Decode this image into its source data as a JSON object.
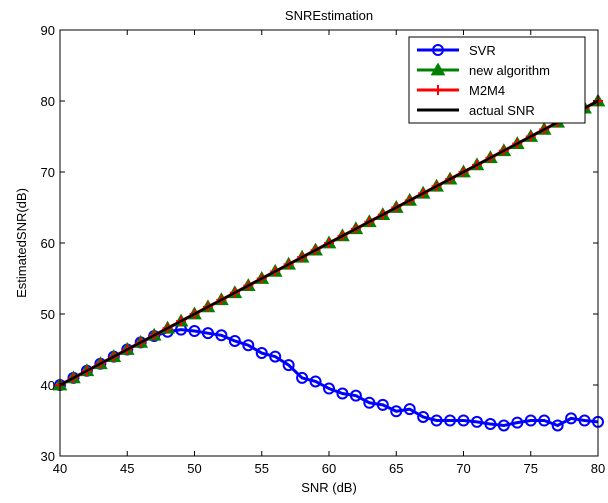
{
  "chart_data": {
    "type": "line",
    "title": "SNREstimation",
    "xlabel": "SNR (dB)",
    "ylabel": "EstimatedSNR(dB)",
    "xlim": [
      40,
      80
    ],
    "ylim": [
      30,
      90
    ],
    "x_ticks": [
      40,
      45,
      50,
      55,
      60,
      65,
      70,
      75,
      80
    ],
    "y_ticks": [
      30,
      40,
      50,
      60,
      70,
      80,
      90
    ],
    "grid": false,
    "legend_position": "top-right",
    "x": [
      40,
      41,
      42,
      43,
      44,
      45,
      46,
      47,
      48,
      49,
      50,
      51,
      52,
      53,
      54,
      55,
      56,
      57,
      58,
      59,
      60,
      61,
      62,
      63,
      64,
      65,
      66,
      67,
      68,
      69,
      70,
      71,
      72,
      73,
      74,
      75,
      76,
      77,
      78,
      79,
      80
    ],
    "series": [
      {
        "name": "SVR",
        "color": "#0000ff",
        "marker": "circle",
        "values": [
          40.0,
          41.0,
          42.0,
          43.0,
          44.0,
          45.0,
          46.0,
          46.9,
          47.5,
          47.8,
          47.6,
          47.3,
          47.0,
          46.2,
          45.6,
          44.5,
          44.0,
          42.8,
          41.0,
          40.5,
          39.5,
          38.8,
          38.5,
          37.5,
          37.2,
          36.3,
          36.6,
          35.5,
          35.0,
          35.0,
          35.0,
          34.8,
          34.5,
          34.3,
          34.7,
          35.0,
          35.0,
          34.3,
          35.3,
          35.0,
          34.8
        ]
      },
      {
        "name": "new algorithm",
        "color": "#008000",
        "marker": "triangle",
        "values": [
          40,
          41,
          42,
          43,
          44,
          45,
          46,
          47,
          48,
          49,
          50,
          51,
          52,
          53,
          54,
          55,
          56,
          57,
          58,
          59,
          60,
          61,
          62,
          63,
          64,
          65,
          66,
          67,
          68,
          69,
          70,
          71,
          72,
          73,
          74,
          75,
          76,
          77,
          78,
          79,
          80
        ]
      },
      {
        "name": "M2M4",
        "color": "#ff0000",
        "marker": "plus",
        "values": [
          40,
          41,
          42,
          43,
          44,
          45,
          46,
          47,
          48,
          49,
          50,
          51,
          52,
          53,
          54,
          55,
          56,
          57,
          58,
          59,
          60,
          61,
          62,
          63,
          64,
          65,
          66,
          67,
          68,
          69,
          70,
          71,
          72,
          73,
          74,
          75,
          76,
          77,
          78,
          79,
          80
        ]
      },
      {
        "name": "actual SNR",
        "color": "#000000",
        "marker": "none",
        "values": [
          40,
          41,
          42,
          43,
          44,
          45,
          46,
          47,
          48,
          49,
          50,
          51,
          52,
          53,
          54,
          55,
          56,
          57,
          58,
          59,
          60,
          61,
          62,
          63,
          64,
          65,
          66,
          67,
          68,
          69,
          70,
          71,
          72,
          73,
          74,
          75,
          76,
          77,
          78,
          79,
          80
        ]
      }
    ]
  }
}
